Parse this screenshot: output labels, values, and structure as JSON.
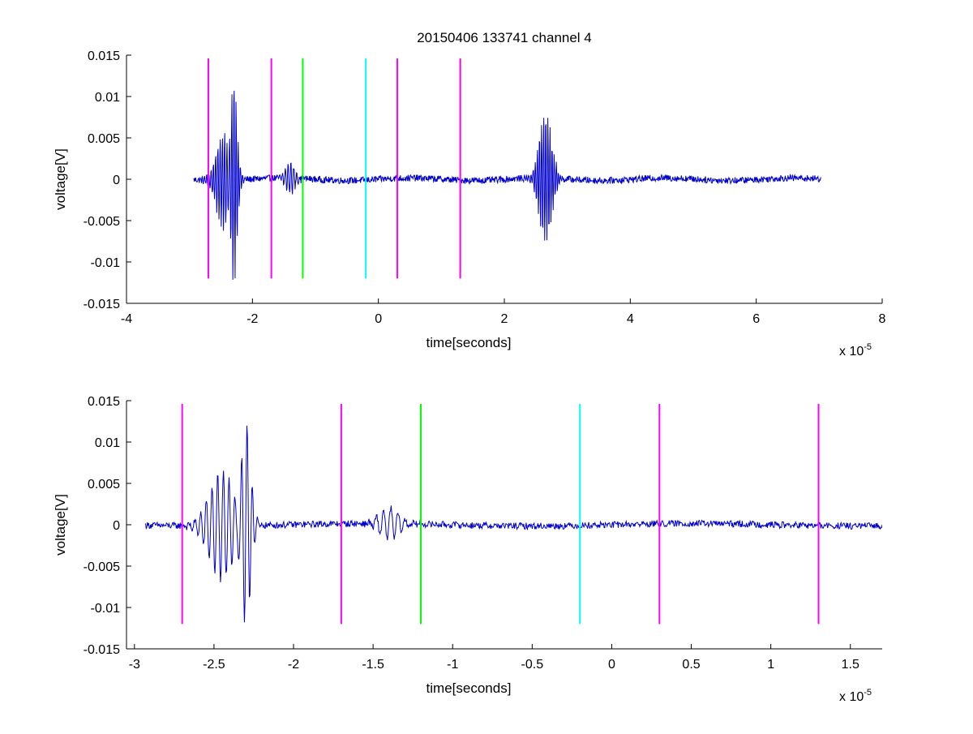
{
  "chart_data": [
    {
      "type": "line",
      "title": "20150406 133741 channel 4",
      "xlabel": "time[seconds]",
      "ylabel": "voltage[V]",
      "x_exponent_base": "x 10",
      "x_exponent_power": "-5",
      "xlim": [
        -4,
        8
      ],
      "ylim": [
        -0.015,
        0.015
      ],
      "xticks": [
        -4,
        -2,
        0,
        2,
        4,
        6,
        8
      ],
      "xtick_labels": [
        "-4",
        "-2",
        "0",
        "2",
        "4",
        "6",
        "8"
      ],
      "yticks": [
        0.015,
        0.01,
        0.005,
        0,
        -0.005,
        -0.01,
        -0.015
      ],
      "ytick_labels": [
        "0.015",
        "0.01",
        "0.005",
        "0",
        "-0.005",
        "-0.01",
        "-0.015"
      ],
      "signal": {
        "color": "#0000cc",
        "x_range": [
          -2.93,
          7.03
        ],
        "bursts": [
          {
            "center": -2.45,
            "width": 0.12,
            "amp": 0.006,
            "freq": 28
          },
          {
            "center": -2.3,
            "width": 0.05,
            "amp": 0.012,
            "freq": 30
          },
          {
            "center": -1.4,
            "width": 0.08,
            "amp": 0.0018,
            "freq": 22
          },
          {
            "center": 2.65,
            "width": 0.1,
            "amp": 0.008,
            "freq": 30
          }
        ],
        "noise": 0.0004
      },
      "markers": [
        {
          "x": -2.7,
          "color": "#ff00ff"
        },
        {
          "x": -1.7,
          "color": "#ff00ff"
        },
        {
          "x": -1.2,
          "color": "#00ff00"
        },
        {
          "x": -0.2,
          "color": "#00ffff"
        },
        {
          "x": 0.3,
          "color": "#ff00ff"
        },
        {
          "x": 1.3,
          "color": "#ff00ff"
        }
      ],
      "marker_yrange": [
        -0.012,
        0.015
      ]
    },
    {
      "type": "line",
      "title": "",
      "xlabel": "time[seconds]",
      "ylabel": "voltage[V]",
      "x_exponent_base": "x 10",
      "x_exponent_power": "-5",
      "xlim": [
        -3.05,
        1.7
      ],
      "ylim": [
        -0.015,
        0.015
      ],
      "xticks": [
        -3,
        -2.5,
        -2,
        -1.5,
        -1,
        -0.5,
        0,
        0.5,
        1,
        1.5
      ],
      "xtick_labels": [
        "-3",
        "-2.5",
        "-2",
        "-1.5",
        "-1",
        "-0.5",
        "0",
        "0.5",
        "1",
        "1.5"
      ],
      "yticks": [
        0.015,
        0.01,
        0.005,
        0,
        -0.005,
        -0.01,
        -0.015
      ],
      "ytick_labels": [
        "0.015",
        "0.01",
        "0.005",
        "0",
        "-0.005",
        "-0.01",
        "-0.015"
      ],
      "signal": {
        "color": "#0000cc",
        "x_range": [
          -2.93,
          1.7
        ],
        "bursts": [
          {
            "center": -2.45,
            "width": 0.08,
            "amp": 0.0065,
            "freq": 28
          },
          {
            "center": -2.3,
            "width": 0.03,
            "amp": 0.012,
            "freq": 30
          },
          {
            "center": -1.4,
            "width": 0.06,
            "amp": 0.002,
            "freq": 22
          }
        ],
        "noise": 0.0004
      },
      "markers": [
        {
          "x": -2.7,
          "color": "#ff00ff"
        },
        {
          "x": -1.7,
          "color": "#ff00ff"
        },
        {
          "x": -1.2,
          "color": "#00ff00"
        },
        {
          "x": -0.2,
          "color": "#00ffff"
        },
        {
          "x": 0.3,
          "color": "#ff00ff"
        },
        {
          "x": 1.3,
          "color": "#ff00ff"
        }
      ],
      "marker_yrange": [
        -0.012,
        0.015
      ]
    }
  ]
}
